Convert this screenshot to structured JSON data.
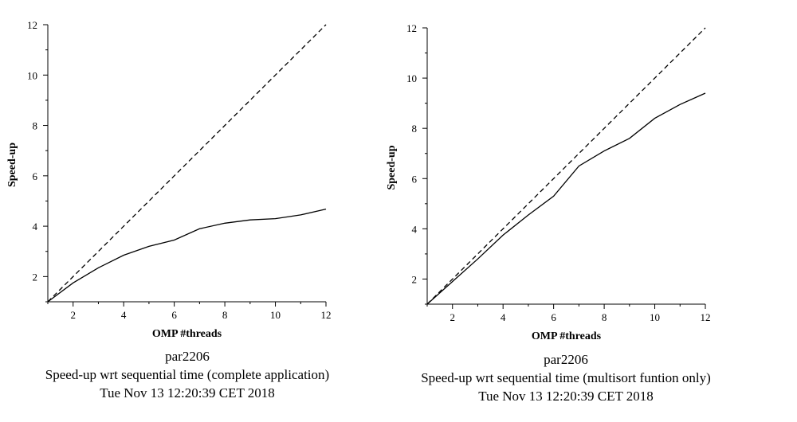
{
  "chart_data": [
    {
      "type": "line",
      "xlabel": "OMP #threads",
      "ylabel": "Speed-up",
      "xlim": [
        1,
        12
      ],
      "ylim": [
        1,
        12
      ],
      "xticks": [
        2,
        4,
        6,
        8,
        10,
        12
      ],
      "yticks": [
        2,
        4,
        6,
        8,
        10,
        12
      ],
      "caption": [
        "par2206",
        "Speed-up wrt sequential time (complete application)",
        "Tue Nov 13 12:20:39 CET 2018"
      ],
      "series": [
        {
          "style": "dashed",
          "x": [
            1,
            12
          ],
          "y": [
            1,
            12
          ]
        },
        {
          "style": "solid",
          "x": [
            1,
            2,
            3,
            4,
            5,
            6,
            7,
            8,
            9,
            10,
            11,
            12
          ],
          "y": [
            1.0,
            1.75,
            2.35,
            2.85,
            3.2,
            3.45,
            3.9,
            4.12,
            4.25,
            4.3,
            4.45,
            4.68
          ]
        }
      ]
    },
    {
      "type": "line",
      "xlabel": "OMP #threads",
      "ylabel": "Speed-up",
      "xlim": [
        1,
        12
      ],
      "ylim": [
        1,
        12
      ],
      "xticks": [
        2,
        4,
        6,
        8,
        10,
        12
      ],
      "yticks": [
        2,
        4,
        6,
        8,
        10,
        12
      ],
      "caption": [
        "par2206",
        "Speed-up wrt sequential time (multisort funtion only)",
        "Tue Nov 13 12:20:39 CET 2018"
      ],
      "series": [
        {
          "style": "dashed",
          "x": [
            1,
            12
          ],
          "y": [
            1,
            12
          ]
        },
        {
          "style": "solid",
          "x": [
            1,
            2,
            3,
            4,
            5,
            6,
            7,
            8,
            9,
            10,
            11,
            12
          ],
          "y": [
            1.0,
            1.9,
            2.8,
            3.75,
            4.55,
            5.3,
            6.5,
            7.1,
            7.6,
            8.4,
            8.95,
            9.4
          ]
        }
      ]
    }
  ]
}
